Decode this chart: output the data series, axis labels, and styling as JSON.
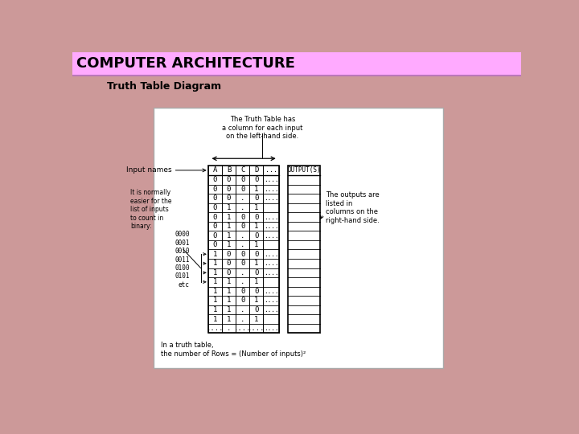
{
  "title": "COMPUTER ARCHITECTURE",
  "subtitle": "Truth Table Diagram",
  "title_bg": "#ffaaff",
  "body_bg": "#cc9999",
  "white_box_bg": "#ffffff",
  "title_color": "#000000",
  "subtitle_color": "#000000",
  "table_headers": [
    "A",
    "B",
    "C",
    "D",
    "...",
    "OUTPUT(S)"
  ],
  "table_rows": [
    [
      "0",
      "0",
      "0",
      "0",
      "...."
    ],
    [
      "0",
      "0",
      "0",
      "1",
      "...."
    ],
    [
      "0",
      "0",
      ".",
      "0",
      "...."
    ],
    [
      "0",
      "1",
      ".",
      "1",
      ""
    ],
    [
      "0",
      "1",
      "0",
      "0",
      "...."
    ],
    [
      "0",
      "1",
      "0",
      "1",
      "...."
    ],
    [
      "0",
      "1",
      ".",
      "0",
      "...."
    ],
    [
      "0",
      "1",
      ".",
      "1",
      ""
    ],
    [
      "1",
      "0",
      "0",
      "0",
      "...."
    ],
    [
      "1",
      "0",
      "0",
      "1",
      "...."
    ],
    [
      "1",
      "0",
      ".",
      "0",
      "...."
    ],
    [
      "1",
      "1",
      ".",
      "1",
      ""
    ],
    [
      "1",
      "1",
      "0",
      "0",
      "...."
    ],
    [
      "1",
      "1",
      "0",
      "1",
      "...."
    ],
    [
      "1",
      "1",
      ".",
      "0",
      "...."
    ],
    [
      "1",
      "1",
      ".",
      "1",
      ""
    ],
    [
      "....",
      ".",
      "....",
      "....",
      "...."
    ]
  ],
  "top_annotation": "The Truth Table has\na column for each input\non the left-hand side.",
  "left_label1": "Input names",
  "left_label2": "It is normally\neasier for the\nlist of inputs\nto count in\nbinary:",
  "left_binary": "0000\n0001\n0010\n0011\n0100\n0101\netc",
  "right_annotation": "The outputs are\nlisted in\ncolumns on the\nright-hand side.",
  "bottom_note": "In a truth table,\nthe number of Rows = (Number of inputs)²"
}
